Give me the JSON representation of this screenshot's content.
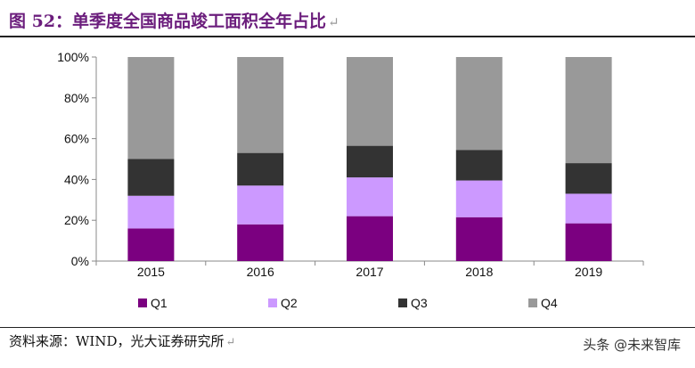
{
  "title": "图 52：单季度全国商品竣工面积全年占比",
  "title_mark": "↵",
  "source": "资料来源：WIND，光大证券研究所",
  "source_mark": "↵",
  "watermark": "头条 @未来智库",
  "chart_data": {
    "type": "bar",
    "stacked": true,
    "categories": [
      "2015",
      "2016",
      "2017",
      "2018",
      "2019"
    ],
    "series": [
      {
        "name": "Q1",
        "color": "#7b0080",
        "values": [
          16,
          18,
          22,
          21.5,
          18.5
        ]
      },
      {
        "name": "Q2",
        "color": "#cc99ff",
        "values": [
          16,
          19,
          19,
          18,
          14.5
        ]
      },
      {
        "name": "Q3",
        "color": "#333333",
        "values": [
          18,
          16,
          15.5,
          15,
          15
        ]
      },
      {
        "name": "Q4",
        "color": "#999999",
        "values": [
          50,
          47,
          43.5,
          45.5,
          52
        ]
      }
    ],
    "yticks": [
      "0%",
      "20%",
      "40%",
      "60%",
      "80%",
      "100%"
    ],
    "ylim": [
      0,
      100
    ],
    "legend_position": "bottom",
    "grid": false
  }
}
